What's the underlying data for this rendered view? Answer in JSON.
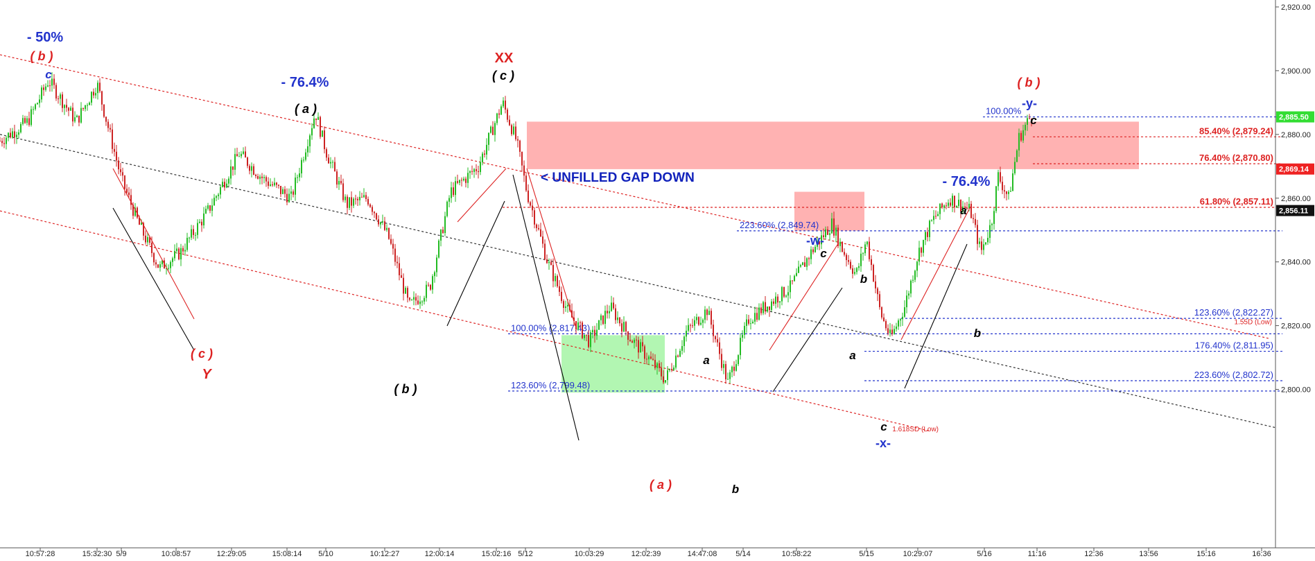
{
  "chart_data": {
    "type": "candlestick",
    "title": "",
    "ylim": [
      2790,
      2921
    ],
    "yticks": [
      2800,
      2820,
      2840,
      2860,
      2880,
      2900,
      2920
    ],
    "ytick_labels": [
      "2,800.00",
      "2,820.00",
      "2,840.00",
      "2,860.00",
      "2,880.00",
      "2,900.00",
      "2,920.00"
    ],
    "xtick_labels": [
      "10:57:28",
      "15:32:30",
      "5/9",
      "10:08:57",
      "12:29:05",
      "15:08:14",
      "5/10",
      "10:12:27",
      "12:00:14",
      "15:02:16",
      "5/12",
      "10:03:29",
      "12:02:39",
      "14:47:08",
      "5/14",
      "10:58:22",
      "5/15",
      "10:29:07",
      "5/16",
      "11:16",
      "12:36",
      "13:56",
      "15:16",
      "16:36"
    ],
    "price_tags": [
      {
        "label": "2,885.50",
        "value": 2885.5,
        "color": "#33dd33",
        "text_color": "#ffffff"
      },
      {
        "label": "2,869.14",
        "value": 2869.14,
        "color": "#ee2222",
        "text_color": "#ffffff"
      },
      {
        "label": "2,856.11",
        "value": 2856.11,
        "color": "#111111",
        "text_color": "#ffffff"
      }
    ],
    "candle_colors": {
      "up": "#22bb22",
      "down": "#cc2222"
    },
    "price_path": [
      {
        "i": 0,
        "p": 2878
      },
      {
        "i": 40,
        "p": 2884
      },
      {
        "i": 70,
        "p": 2897
      },
      {
        "i": 110,
        "p": 2884
      },
      {
        "i": 140,
        "p": 2896
      },
      {
        "i": 175,
        "p": 2866
      },
      {
        "i": 200,
        "p": 2852
      },
      {
        "i": 230,
        "p": 2838
      },
      {
        "i": 260,
        "p": 2843
      },
      {
        "i": 300,
        "p": 2856
      },
      {
        "i": 345,
        "p": 2874
      },
      {
        "i": 380,
        "p": 2866
      },
      {
        "i": 420,
        "p": 2860
      },
      {
        "i": 455,
        "p": 2887
      },
      {
        "i": 470,
        "p": 2875
      },
      {
        "i": 500,
        "p": 2858
      },
      {
        "i": 530,
        "p": 2860
      },
      {
        "i": 560,
        "p": 2848
      },
      {
        "i": 590,
        "p": 2826
      },
      {
        "i": 620,
        "p": 2832
      },
      {
        "i": 650,
        "p": 2862
      },
      {
        "i": 690,
        "p": 2870
      },
      {
        "i": 725,
        "p": 2890
      },
      {
        "i": 745,
        "p": 2878
      },
      {
        "i": 760,
        "p": 2862
      },
      {
        "i": 790,
        "p": 2840
      },
      {
        "i": 820,
        "p": 2824
      },
      {
        "i": 850,
        "p": 2815
      },
      {
        "i": 880,
        "p": 2826
      },
      {
        "i": 910,
        "p": 2816
      },
      {
        "i": 935,
        "p": 2810
      },
      {
        "i": 960,
        "p": 2803
      },
      {
        "i": 990,
        "p": 2818
      },
      {
        "i": 1020,
        "p": 2825
      },
      {
        "i": 1050,
        "p": 2802
      },
      {
        "i": 1080,
        "p": 2822
      },
      {
        "i": 1110,
        "p": 2827
      },
      {
        "i": 1140,
        "p": 2832
      },
      {
        "i": 1170,
        "p": 2843
      },
      {
        "i": 1200,
        "p": 2852
      },
      {
        "i": 1215,
        "p": 2844
      },
      {
        "i": 1235,
        "p": 2836
      },
      {
        "i": 1250,
        "p": 2847
      },
      {
        "i": 1270,
        "p": 2824
      },
      {
        "i": 1285,
        "p": 2816
      },
      {
        "i": 1305,
        "p": 2826
      },
      {
        "i": 1325,
        "p": 2843
      },
      {
        "i": 1345,
        "p": 2853
      },
      {
        "i": 1370,
        "p": 2860
      },
      {
        "i": 1400,
        "p": 2856
      },
      {
        "i": 1415,
        "p": 2843
      },
      {
        "i": 1430,
        "p": 2852
      },
      {
        "i": 1440,
        "p": 2867
      },
      {
        "i": 1455,
        "p": 2860
      },
      {
        "i": 1470,
        "p": 2879
      },
      {
        "i": 1490,
        "p": 2887
      }
    ],
    "horizontal_levels": [
      {
        "label": "100.00%",
        "value": 2885.5,
        "color": "#2233cc",
        "x0": 1418,
        "x1": 1850,
        "label_x": 1422,
        "anchor": "start"
      },
      {
        "label": "85.40% (2,879.24)",
        "value": 2879.24,
        "color": "#dd2222",
        "x0": 1490,
        "x1": 1850,
        "label_x": 1837,
        "anchor": "end"
      },
      {
        "label": "76.40% (2,870.80)",
        "value": 2870.8,
        "color": "#dd2222",
        "x0": 1490,
        "x1": 1850,
        "label_x": 1837,
        "anchor": "end"
      },
      {
        "label": "61.80% (2,857.11)",
        "value": 2857.11,
        "color": "#dd2222",
        "x0": 725,
        "x1": 1850,
        "label_x": 1837,
        "anchor": "end"
      },
      {
        "label": "223.60% (2,849.74)",
        "value": 2849.74,
        "color": "#2233cc",
        "x0": 1063,
        "x1": 1850,
        "label_x": 1067,
        "anchor": "start"
      },
      {
        "label": "123.60% (2,822.27)",
        "value": 2822.27,
        "color": "#2233cc",
        "x0": 1300,
        "x1": 1850,
        "label_x": 1837,
        "anchor": "end"
      },
      {
        "label": "100.00% (2,817.43)",
        "value": 2817.43,
        "color": "#2233cc",
        "x0": 733,
        "x1": 1850,
        "label_x": 737,
        "anchor": "start"
      },
      {
        "label": "176.40% (2,811.95)",
        "value": 2811.95,
        "color": "#2233cc",
        "x0": 1247,
        "x1": 1850,
        "label_x": 1837,
        "anchor": "end"
      },
      {
        "label": "223.60% (2,802.72)",
        "value": 2802.72,
        "color": "#2233cc",
        "x0": 1247,
        "x1": 1850,
        "label_x": 1837,
        "anchor": "end"
      },
      {
        "label": "123.60% (2,799.48)",
        "value": 2799.48,
        "color": "#2233cc",
        "x0": 733,
        "x1": 1850,
        "label_x": 737,
        "anchor": "start"
      }
    ],
    "zones": [
      {
        "label": "< UNFILLED GAP DOWN",
        "y_top": 2884.0,
        "y_bottom": 2869.1,
        "x0": 760,
        "x1": 1643,
        "color": "#ffaaaa"
      },
      {
        "label": "",
        "y_top": 2862.0,
        "y_bottom": 2849.8,
        "x0": 1146,
        "x1": 1247,
        "color": "#ffaaaa"
      },
      {
        "label": "",
        "y_top": 2817.0,
        "y_bottom": 2799.0,
        "x0": 810,
        "x1": 959,
        "color": "#aaf5aa"
      }
    ],
    "channel_lines": [
      {
        "name": "upper",
        "color": "#dd2222",
        "dash": "3,3",
        "p1": [
          0,
          2905
        ],
        "p2": [
          1830,
          2816
        ]
      },
      {
        "name": "middle",
        "color": "#333333",
        "dash": "3,3",
        "p1": [
          0,
          2880
        ],
        "p2": [
          1840,
          2788
        ]
      },
      {
        "name": "lower",
        "color": "#dd2222",
        "dash": "3,3",
        "p1": [
          0,
          2856
        ],
        "p2": [
          1340,
          2787
        ]
      }
    ],
    "channel_labels": [
      {
        "label": "1.55D (Low)",
        "x": 1835,
        "value": 2820.5,
        "color": "#dd2222"
      },
      {
        "label": "1.618SD (Low)",
        "x": 1354,
        "value": 2786.8,
        "color": "#dd2222"
      }
    ],
    "wave_labels": [
      {
        "text": "- 50%",
        "x": 65,
        "y": 60,
        "color": "#2233cc",
        "size": 20
      },
      {
        "text": "( b )",
        "x": 60,
        "y": 87,
        "color": "#dd2222",
        "size": 18
      },
      {
        "text": "c",
        "x": 70,
        "y": 113,
        "color": "#2233cc",
        "size": 17
      },
      {
        "text": "- 76.4%",
        "x": 440,
        "y": 125,
        "color": "#2233cc",
        "size": 20
      },
      {
        "text": "( a )",
        "x": 441,
        "y": 163,
        "color": "#000000",
        "size": 18
      },
      {
        "text": "( c )",
        "x": 291,
        "y": 516,
        "color": "#dd2222",
        "size": 18
      },
      {
        "text": "Y",
        "x": 298,
        "y": 546,
        "color": "#dd2222",
        "size": 20
      },
      {
        "text": "( b )",
        "x": 585,
        "y": 567,
        "color": "#000000",
        "size": 18
      },
      {
        "text": "XX",
        "x": 727,
        "y": 90,
        "color": "#dd2222",
        "size": 20
      },
      {
        "text": "( c )",
        "x": 726,
        "y": 115,
        "color": "#000000",
        "size": 18
      },
      {
        "text": "( a )",
        "x": 953,
        "y": 705,
        "color": "#dd2222",
        "size": 18
      },
      {
        "text": "b",
        "x": 1061,
        "y": 711,
        "color": "#000000",
        "size": 17
      },
      {
        "text": "a",
        "x": 1019,
        "y": 525,
        "color": "#000000",
        "size": 17
      },
      {
        "text": "-w-",
        "x": 1176,
        "y": 353,
        "color": "#2233cc",
        "size": 18
      },
      {
        "text": "c",
        "x": 1188,
        "y": 371,
        "color": "#000000",
        "size": 17
      },
      {
        "text": "b",
        "x": 1246,
        "y": 408,
        "color": "#000000",
        "size": 17
      },
      {
        "text": "a",
        "x": 1230,
        "y": 518,
        "color": "#000000",
        "size": 17
      },
      {
        "text": "c",
        "x": 1275,
        "y": 621,
        "color": "#000000",
        "size": 17
      },
      {
        "text": "-x-",
        "x": 1274,
        "y": 645,
        "color": "#2233cc",
        "size": 18
      },
      {
        "text": "a",
        "x": 1390,
        "y": 309,
        "color": "#000000",
        "size": 17
      },
      {
        "text": "b",
        "x": 1410,
        "y": 486,
        "color": "#000000",
        "size": 17
      },
      {
        "text": "- 76.4%",
        "x": 1394,
        "y": 268,
        "color": "#2233cc",
        "size": 20
      },
      {
        "text": "( b )",
        "x": 1484,
        "y": 125,
        "color": "#dd2222",
        "size": 18
      },
      {
        "text": "-y-",
        "x": 1485,
        "y": 155,
        "color": "#2233cc",
        "size": 18
      },
      {
        "text": "c",
        "x": 1491,
        "y": 179,
        "color": "#000000",
        "size": 17
      }
    ],
    "annotation_text": [
      {
        "text": "< UNFILLED GAP DOWN",
        "x": 780,
        "y": 262,
        "color": "#1122bb",
        "size": 19
      }
    ],
    "trend_lines": [
      {
        "color": "#dd2222",
        "pts": [
          [
            163,
            243
          ],
          [
            280,
            460
          ]
        ]
      },
      {
        "color": "#000000",
        "pts": [
          [
            163,
            300
          ],
          [
            280,
            505
          ]
        ]
      },
      {
        "color": "#dd2222",
        "pts": [
          [
            660,
            320
          ],
          [
            730,
            243
          ]
        ]
      },
      {
        "color": "#000000",
        "pts": [
          [
            645,
            470
          ],
          [
            728,
            290
          ]
        ]
      },
      {
        "color": "#dd2222",
        "pts": [
          [
            760,
            243
          ],
          [
            830,
            470
          ]
        ]
      },
      {
        "color": "#000000",
        "pts": [
          [
            740,
            252
          ],
          [
            835,
            635
          ]
        ]
      },
      {
        "color": "#dd2222",
        "pts": [
          [
            1110,
            505
          ],
          [
            1210,
            350
          ]
        ]
      },
      {
        "color": "#000000",
        "pts": [
          [
            1115,
            565
          ],
          [
            1215,
            415
          ]
        ]
      },
      {
        "color": "#dd2222",
        "pts": [
          [
            1300,
            490
          ],
          [
            1400,
            298
          ]
        ]
      },
      {
        "color": "#000000",
        "pts": [
          [
            1305,
            560
          ],
          [
            1395,
            352
          ]
        ]
      }
    ]
  }
}
